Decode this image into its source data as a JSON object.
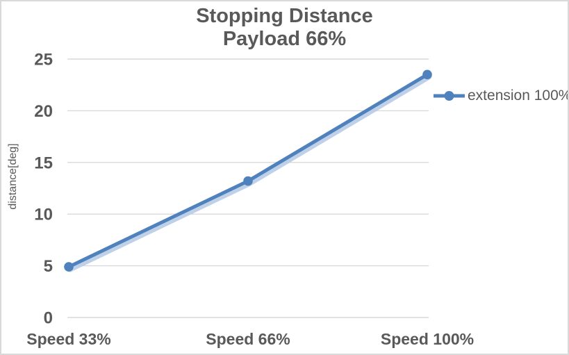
{
  "window": {
    "background": "#ffffff",
    "border_color": "#d9d9d9"
  },
  "chart_data": {
    "type": "line",
    "title": "Stopping Distance",
    "subtitle": "Payload 66%",
    "categories": [
      "Speed 33%",
      "Speed 66%",
      "Speed 100%"
    ],
    "series": [
      {
        "name": "extension 100%",
        "values": [
          4.9,
          13.2,
          23.5
        ],
        "color": "#4f81bd",
        "glow_color": "#b8cce6",
        "marker": "circle"
      }
    ],
    "ylabel": "distance[deg]",
    "ylim": [
      0,
      25
    ],
    "yticks": [
      0,
      5,
      10,
      15,
      20,
      25
    ],
    "grid": true,
    "gridline_color": "#d9d9d9",
    "text_color": "#595959",
    "legend_position": "right"
  }
}
